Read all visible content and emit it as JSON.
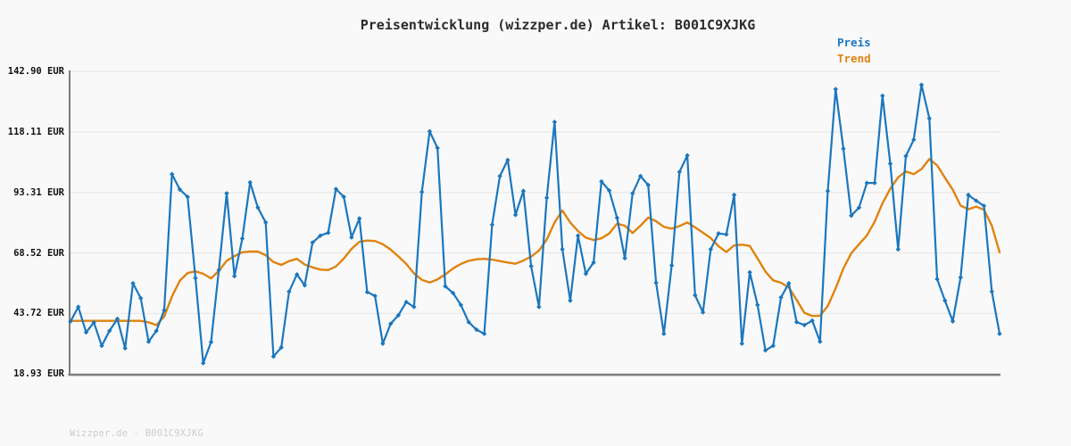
{
  "title": "Preisentwicklung (wizzper.de) Artikel: B001C9XJKG",
  "watermark": "Wizzper.de - B001C9XJKG",
  "colors": {
    "background": "#f9f9f9",
    "price_line": "#1b77bd",
    "trend_line": "#e0830f",
    "grid_line": "#e8e8e8",
    "axis_spine": "#7d7d7d",
    "title_text": "#2b2b2b",
    "tick_text": "#111111",
    "watermark_text": "#cccccc"
  },
  "chart_data": {
    "type": "line",
    "title": "Preisentwicklung (wizzper.de) Artikel: B001C9XJKG",
    "xlabel": "",
    "ylabel": "",
    "x": {
      "type": "uniform-index",
      "count": 120,
      "tick_labels_visible": false
    },
    "y_axis": {
      "unit": "EUR",
      "tick_labels": [
        "142.90 EUR",
        "118.11 EUR",
        "93.31 EUR",
        "68.52 EUR",
        "43.72 EUR",
        "18.93 EUR"
      ],
      "tick_values": [
        142.9,
        118.11,
        93.31,
        68.52,
        43.72,
        18.93
      ],
      "range": [
        18.93,
        142.9
      ]
    },
    "grid": "horizontal-only",
    "legend_position": "top-right",
    "series": [
      {
        "name": "Preis",
        "color": "#1b77bd",
        "marker": "diamond",
        "line_width": 2.2,
        "values": [
          40.5,
          46.4,
          36.0,
          40.0,
          30.5,
          36.6,
          41.5,
          29.5,
          56.1,
          50.0,
          32.2,
          36.6,
          45.1,
          100.8,
          94.5,
          91.5,
          58.2,
          23.4,
          32.0,
          61.5,
          92.9,
          59.0,
          74.4,
          97.4,
          87.1,
          81.0,
          26.1,
          29.8,
          52.7,
          59.7,
          55.3,
          72.8,
          75.6,
          76.8,
          94.7,
          91.5,
          74.9,
          82.6,
          52.5,
          50.9,
          31.4,
          39.5,
          43.0,
          48.4,
          46.4,
          93.5,
          118.3,
          111.5,
          54.9,
          52.1,
          47.2,
          40.2,
          37.1,
          35.4,
          80.1,
          100.0,
          106.6,
          84.1,
          93.9,
          63.1,
          46.4,
          91.1,
          122.2,
          70.0,
          49.0,
          75.6,
          60.0,
          64.6,
          97.8,
          94.1,
          82.9,
          66.4,
          92.9,
          100.0,
          96.3,
          56.3,
          35.4,
          63.4,
          101.7,
          108.5,
          51.2,
          44.2,
          70.0,
          76.5,
          76.1,
          92.3,
          31.4,
          60.6,
          47.2,
          28.6,
          30.5,
          50.3,
          56.1,
          40.2,
          39.0,
          40.8,
          32.2,
          93.9,
          135.6,
          111.2,
          83.8,
          87.1,
          97.2,
          97.2,
          132.9,
          105.1,
          70.0,
          108.2,
          114.9,
          137.4,
          123.6,
          57.8,
          49.0,
          40.5,
          58.5,
          92.3,
          89.9,
          87.8,
          52.7,
          35.4
        ]
      },
      {
        "name": "Trend",
        "color": "#e0830f",
        "marker": "none",
        "line_width": 2.4,
        "values": [
          40.7,
          40.7,
          40.7,
          40.7,
          40.7,
          40.7,
          40.7,
          40.7,
          40.7,
          40.7,
          40.1,
          39.0,
          42.5,
          50.7,
          57.2,
          60.3,
          61.0,
          60.0,
          58.1,
          61.2,
          65.3,
          67.2,
          68.8,
          69.1,
          69.1,
          67.6,
          64.8,
          63.6,
          65.2,
          66.1,
          63.8,
          62.6,
          61.7,
          61.5,
          63.0,
          66.2,
          70.2,
          73.1,
          73.6,
          73.4,
          72.1,
          69.9,
          67.1,
          64.0,
          60.1,
          57.5,
          56.4,
          57.7,
          59.7,
          62.2,
          64.0,
          65.3,
          65.9,
          66.1,
          65.8,
          65.2,
          64.6,
          64.1,
          65.4,
          67.0,
          69.5,
          74.0,
          81.0,
          85.9,
          81.0,
          77.5,
          74.8,
          73.8,
          74.5,
          76.5,
          80.5,
          79.7,
          76.7,
          79.7,
          83.0,
          81.5,
          79.2,
          78.5,
          79.5,
          81.0,
          79.0,
          76.8,
          74.6,
          71.3,
          68.9,
          71.6,
          71.9,
          71.4,
          66.3,
          60.9,
          57.3,
          56.3,
          54.4,
          49.3,
          44.0,
          42.7,
          42.8,
          46.8,
          54.0,
          62.2,
          68.4,
          72.1,
          75.7,
          81.3,
          88.9,
          94.8,
          99.5,
          101.9,
          100.8,
          102.9,
          107.0,
          104.4,
          99.3,
          94.4,
          87.9,
          86.4,
          87.5,
          86.2,
          79.7,
          68.8
        ]
      }
    ]
  }
}
